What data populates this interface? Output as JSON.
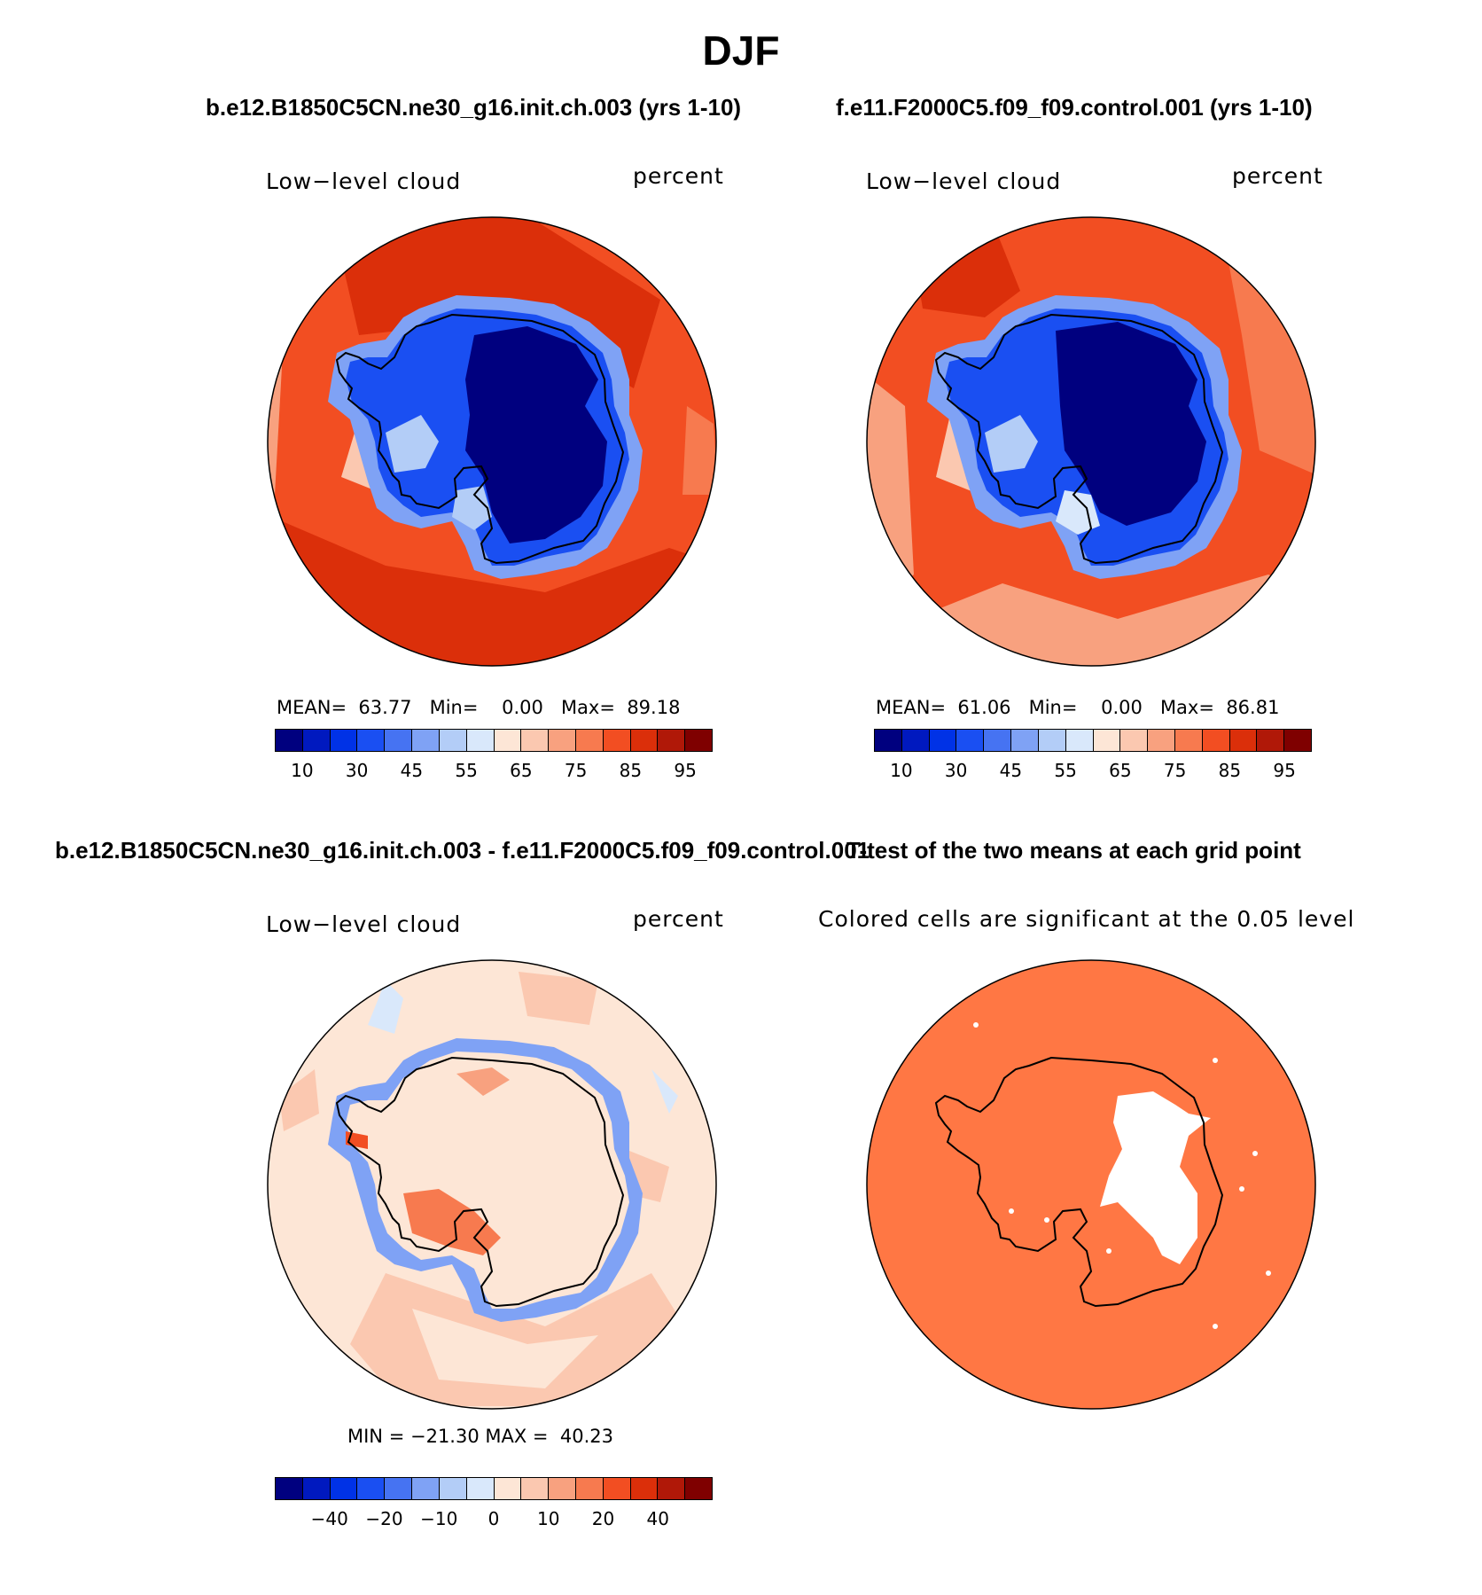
{
  "title": "DJF",
  "panels": [
    {
      "case": "b.e12.B1850C5CN.ne30_g16.init.ch.003 (yrs 1-10)",
      "var": "Low−level cloud",
      "units": "percent",
      "stats": {
        "mean_label": "MEAN=",
        "mean": "63.77",
        "min_label": "Min=",
        "min": "0.00",
        "max_label": "Max=",
        "max": "89.18"
      }
    },
    {
      "case": "f.e11.F2000C5.f09_f09.control.001 (yrs 1-10)",
      "var": "Low−level cloud",
      "units": "percent",
      "stats": {
        "mean_label": "MEAN=",
        "mean": "61.06",
        "min_label": "Min=",
        "min": "0.00",
        "max_label": "Max=",
        "max": "86.81"
      }
    },
    {
      "case": "b.e12.B1850C5CN.ne30_g16.init.ch.003 - f.e11.F2000C5.f09_f09.control.001",
      "var": "Low−level cloud",
      "units": "percent",
      "stats": {
        "min_label": "MIN =",
        "min": "−21.30",
        "max_label": "MAX =",
        "max": "40.23"
      }
    },
    {
      "case": "T-test of the two means at each grid point",
      "note": "Colored cells are significant at the 0.05 level"
    }
  ],
  "colorbars": {
    "absolute_ticks": [
      "10",
      "30",
      "45",
      "55",
      "65",
      "75",
      "85",
      "95"
    ],
    "difference_ticks": [
      "−40",
      "−20",
      "−10",
      "0",
      "10",
      "20",
      "40"
    ],
    "colors": [
      "#00007f",
      "#0019bf",
      "#0032e6",
      "#1a4ff2",
      "#4673f2",
      "#7fa2f5",
      "#b3cdf7",
      "#d9e8fb",
      "#fde6d6",
      "#fbc8b0",
      "#f8a17f",
      "#f77a4f",
      "#f24e22",
      "#db2f0a",
      "#b01808",
      "#7f0000"
    ]
  },
  "colors": {
    "significant": "#ff7744",
    "continent_outline": "#000000"
  }
}
